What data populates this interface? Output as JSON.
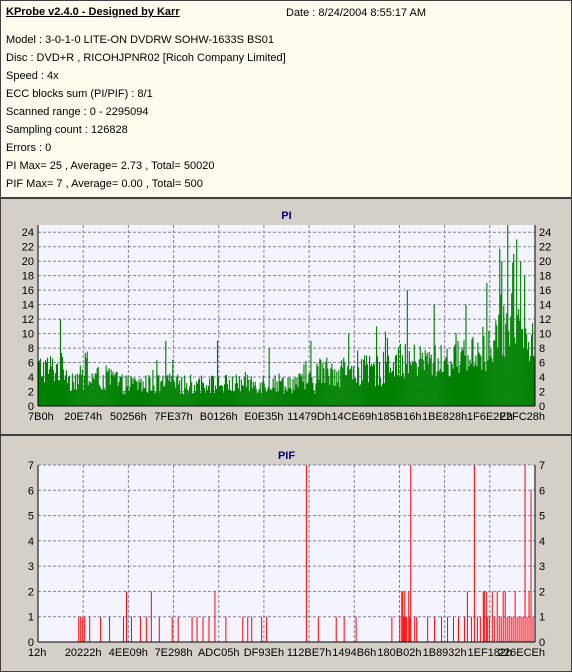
{
  "info": {
    "title": "KProbe v2.4.0 - Designed by Karr",
    "date": "Date : 8/24/2004 8:55:17 AM",
    "lines": [
      "Model : 3-0-1-0 LITE-ON DVDRW SOHW-1633S BS01",
      "Disc : DVD+R , RICOHJPNR02 [Ricoh Company Limited]",
      "Speed : 4x",
      "ECC blocks sum (PI/PIF) : 8/1",
      "Scanned range : 0 - 2295094",
      "Sampling count : 126828",
      "Errors : 0",
      "PI Max= 25 , Average= 2.73 , Total= 50020",
      "PIF Max= 7 , Average= 0.00 , Total= 500"
    ]
  },
  "chart_data": [
    {
      "type": "bar",
      "title": "PI",
      "color": "#008000",
      "ylim": [
        0,
        25
      ],
      "yticks": [
        0,
        2,
        4,
        6,
        8,
        10,
        12,
        14,
        16,
        18,
        20,
        22,
        24
      ],
      "xticklabels": [
        "7B0h",
        "20E74h",
        "50256h",
        "7FE37h",
        "B0126h",
        "E0E35h",
        "11479Dh",
        "14CE69h",
        "185B16h",
        "1BE828h",
        "1F6E2Eh",
        "22FC28h"
      ],
      "x_unit": "sample",
      "x_range": [
        0,
        500
      ],
      "segments": [
        {
          "from": 0,
          "to": 30,
          "base": 5.2,
          "spread": 2.2
        },
        {
          "from": 30,
          "to": 80,
          "base": 3.8,
          "spread": 1.8
        },
        {
          "from": 80,
          "to": 200,
          "base": 3.0,
          "spread": 1.4
        },
        {
          "from": 200,
          "to": 280,
          "base": 3.2,
          "spread": 1.5
        },
        {
          "from": 280,
          "to": 350,
          "base": 4.8,
          "spread": 2.2
        },
        {
          "from": 350,
          "to": 420,
          "base": 6.2,
          "spread": 2.4
        },
        {
          "from": 420,
          "to": 460,
          "base": 7.5,
          "spread": 3.0
        },
        {
          "from": 460,
          "to": 485,
          "base": 11.0,
          "spread": 4.5
        },
        {
          "from": 485,
          "to": 500,
          "base": 8.5,
          "spread": 3.0
        }
      ],
      "spikes": [
        [
          22,
          12
        ],
        [
          128,
          9
        ],
        [
          180,
          9
        ],
        [
          232,
          8
        ],
        [
          274,
          9
        ],
        [
          312,
          10
        ],
        [
          340,
          11
        ],
        [
          371,
          16
        ],
        [
          398,
          14
        ],
        [
          430,
          14
        ],
        [
          451,
          17
        ],
        [
          466,
          20
        ],
        [
          472,
          25
        ],
        [
          478,
          21
        ],
        [
          481,
          23
        ],
        [
          485,
          20
        ],
        [
          489,
          18
        ]
      ]
    },
    {
      "type": "bar",
      "title": "PIF",
      "color": "#ff0000",
      "ylim": [
        0,
        7
      ],
      "yticks": [
        0,
        1,
        2,
        3,
        4,
        5,
        6,
        7
      ],
      "xticklabels": [
        "12h",
        "20222h",
        "4EE09h",
        "7E298h",
        "ADC05h",
        "DF93Eh",
        "112BE7h",
        "1494B6h",
        "180B02h",
        "1B8932h",
        "1EF182h",
        "226ECEh"
      ],
      "x_unit": "sample",
      "x_range": [
        0,
        500
      ],
      "bars": [
        [
          41,
          1
        ],
        [
          43,
          1
        ],
        [
          45,
          1
        ],
        [
          47,
          1
        ],
        [
          52,
          1
        ],
        [
          63,
          1
        ],
        [
          72,
          1
        ],
        [
          86,
          1
        ],
        [
          89,
          2
        ],
        [
          94,
          1
        ],
        [
          103,
          1
        ],
        [
          109,
          1
        ],
        [
          114,
          2
        ],
        [
          122,
          1
        ],
        [
          135,
          1
        ],
        [
          141,
          1
        ],
        [
          155,
          1
        ],
        [
          160,
          1
        ],
        [
          166,
          1
        ],
        [
          172,
          1
        ],
        [
          178,
          2
        ],
        [
          189,
          1
        ],
        [
          206,
          1
        ],
        [
          211,
          1
        ],
        [
          215,
          1
        ],
        [
          225,
          1
        ],
        [
          230,
          1
        ],
        [
          270,
          7
        ],
        [
          282,
          1
        ],
        [
          300,
          1
        ],
        [
          308,
          1
        ],
        [
          320,
          1
        ],
        [
          356,
          1
        ],
        [
          364,
          1
        ],
        [
          366,
          2
        ],
        [
          367,
          2
        ],
        [
          368,
          1
        ],
        [
          369,
          2
        ],
        [
          370,
          1
        ],
        [
          371,
          1
        ],
        [
          373,
          2
        ],
        [
          374,
          1
        ],
        [
          375,
          7
        ],
        [
          379,
          1
        ],
        [
          381,
          1
        ],
        [
          392,
          1
        ],
        [
          399,
          1
        ],
        [
          406,
          1
        ],
        [
          412,
          1
        ],
        [
          418,
          1
        ],
        [
          423,
          1
        ],
        [
          429,
          1
        ],
        [
          432,
          2
        ],
        [
          436,
          1
        ],
        [
          439,
          7
        ],
        [
          442,
          1
        ],
        [
          445,
          1
        ],
        [
          448,
          2
        ],
        [
          449,
          2
        ],
        [
          451,
          2
        ],
        [
          452,
          1
        ],
        [
          454,
          1
        ],
        [
          457,
          2
        ],
        [
          459,
          1
        ],
        [
          462,
          2
        ],
        [
          464,
          1
        ],
        [
          466,
          1
        ],
        [
          468,
          2
        ],
        [
          470,
          2
        ],
        [
          472,
          1
        ],
        [
          474,
          1
        ],
        [
          476,
          1
        ],
        [
          478,
          1
        ],
        [
          480,
          2
        ],
        [
          482,
          1
        ],
        [
          484,
          1
        ],
        [
          486,
          1
        ],
        [
          488,
          1
        ],
        [
          490,
          7
        ],
        [
          492,
          1
        ],
        [
          494,
          2
        ],
        [
          496,
          6
        ],
        [
          498,
          1
        ],
        [
          500,
          2
        ]
      ]
    }
  ]
}
